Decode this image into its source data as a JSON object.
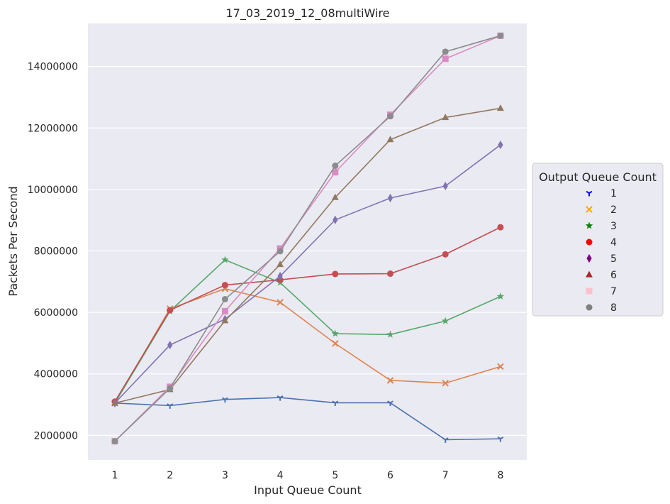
{
  "chart_data": {
    "type": "line",
    "title": "17_03_2019_12_08multiWire",
    "xlabel": "Input Queue Count",
    "ylabel": "Packets Per Second",
    "x": [
      1,
      2,
      3,
      4,
      5,
      6,
      7,
      8
    ],
    "ylim": [
      1200000,
      15400000
    ],
    "yticks": [
      2000000,
      4000000,
      6000000,
      8000000,
      10000000,
      12000000,
      14000000
    ],
    "grid": true,
    "legend": {
      "title": "Output Queue Count",
      "placement": "right",
      "entries": [
        {
          "label": "1",
          "marker": "tri-down",
          "color": "#0000ff"
        },
        {
          "label": "2",
          "marker": "x",
          "color": "#ffa500"
        },
        {
          "label": "3",
          "marker": "star",
          "color": "#008000"
        },
        {
          "label": "4",
          "marker": "circle",
          "color": "#ff0000"
        },
        {
          "label": "5",
          "marker": "diamond",
          "color": "#800080"
        },
        {
          "label": "6",
          "marker": "triangle",
          "color": "#a52a2a"
        },
        {
          "label": "7",
          "marker": "square",
          "color": "#ffc0cb"
        },
        {
          "label": "8",
          "marker": "circle",
          "color": "#808080"
        }
      ]
    },
    "series": [
      {
        "name": "1",
        "color": "#4c72b0",
        "marker": "tri-down",
        "values": [
          3050000,
          2970000,
          3170000,
          3230000,
          3060000,
          3060000,
          1860000,
          1890000
        ]
      },
      {
        "name": "2",
        "color": "#dd8452",
        "marker": "x",
        "values": [
          3050000,
          6120000,
          6770000,
          6330000,
          4990000,
          3790000,
          3700000,
          4240000
        ]
      },
      {
        "name": "3",
        "color": "#55a868",
        "marker": "star",
        "values": [
          3050000,
          6040000,
          7710000,
          6970000,
          5310000,
          5280000,
          5720000,
          6520000
        ]
      },
      {
        "name": "4",
        "color": "#c44e52",
        "marker": "circle",
        "values": [
          3100000,
          6070000,
          6890000,
          7060000,
          7250000,
          7260000,
          7890000,
          8770000
        ]
      },
      {
        "name": "5",
        "color": "#8172b3",
        "marker": "diamond",
        "values": [
          3050000,
          4940000,
          5780000,
          7180000,
          9010000,
          9720000,
          10110000,
          11450000
        ]
      },
      {
        "name": "6",
        "color": "#937860",
        "marker": "triangle",
        "values": [
          3050000,
          3490000,
          5730000,
          7560000,
          9740000,
          11620000,
          12340000,
          12640000
        ]
      },
      {
        "name": "7",
        "color": "#da8bc3",
        "marker": "square",
        "values": [
          1810000,
          3580000,
          6040000,
          8080000,
          10560000,
          12430000,
          14250000,
          15000000
        ]
      },
      {
        "name": "8",
        "color": "#8c8c8c",
        "marker": "circle",
        "values": [
          1810000,
          3530000,
          6430000,
          7990000,
          10770000,
          12380000,
          14480000,
          15000000
        ]
      }
    ]
  }
}
